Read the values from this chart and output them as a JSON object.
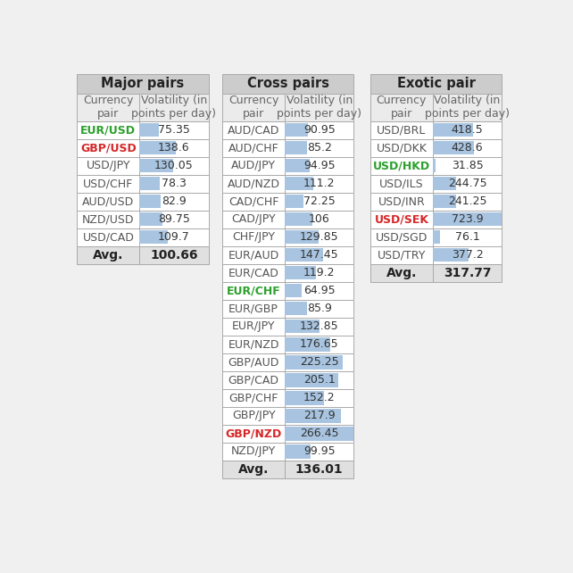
{
  "major_pairs": {
    "title": "Major pairs",
    "rows": [
      {
        "pair": "EUR/USD",
        "value": 75.35,
        "color": "#2ca02c"
      },
      {
        "pair": "GBP/USD",
        "value": 138.6,
        "color": "#d62728"
      },
      {
        "pair": "USD/JPY",
        "value": 130.05,
        "color": "#555555"
      },
      {
        "pair": "USD/CHF",
        "value": 78.3,
        "color": "#555555"
      },
      {
        "pair": "AUD/USD",
        "value": 82.9,
        "color": "#555555"
      },
      {
        "pair": "NZD/USD",
        "value": 89.75,
        "color": "#555555"
      },
      {
        "pair": "USD/CAD",
        "value": 109.7,
        "color": "#555555"
      }
    ],
    "avg": "100.66",
    "bar_max": 266.45
  },
  "cross_pairs": {
    "title": "Cross pairs",
    "rows": [
      {
        "pair": "AUD/CAD",
        "value": 90.95,
        "color": "#555555"
      },
      {
        "pair": "AUD/CHF",
        "value": 85.2,
        "color": "#555555"
      },
      {
        "pair": "AUD/JPY",
        "value": 94.95,
        "color": "#555555"
      },
      {
        "pair": "AUD/NZD",
        "value": 111.2,
        "color": "#555555"
      },
      {
        "pair": "CAD/CHF",
        "value": 72.25,
        "color": "#555555"
      },
      {
        "pair": "CAD/JPY",
        "value": 106,
        "color": "#555555"
      },
      {
        "pair": "CHF/JPY",
        "value": 129.85,
        "color": "#555555"
      },
      {
        "pair": "EUR/AUD",
        "value": 147.45,
        "color": "#555555"
      },
      {
        "pair": "EUR/CAD",
        "value": 119.2,
        "color": "#555555"
      },
      {
        "pair": "EUR/CHF",
        "value": 64.95,
        "color": "#2ca02c"
      },
      {
        "pair": "EUR/GBP",
        "value": 85.9,
        "color": "#555555"
      },
      {
        "pair": "EUR/JPY",
        "value": 132.85,
        "color": "#555555"
      },
      {
        "pair": "EUR/NZD",
        "value": 176.65,
        "color": "#555555"
      },
      {
        "pair": "GBP/AUD",
        "value": 225.25,
        "color": "#555555"
      },
      {
        "pair": "GBP/CAD",
        "value": 205.1,
        "color": "#555555"
      },
      {
        "pair": "GBP/CHF",
        "value": 152.2,
        "color": "#555555"
      },
      {
        "pair": "GBP/JPY",
        "value": 217.9,
        "color": "#555555"
      },
      {
        "pair": "GBP/NZD",
        "value": 266.45,
        "color": "#d62728"
      },
      {
        "pair": "NZD/JPY",
        "value": 99.95,
        "color": "#555555"
      }
    ],
    "avg": "136.01",
    "bar_max": 266.45
  },
  "exotic_pairs": {
    "title": "Exotic pair",
    "rows": [
      {
        "pair": "USD/BRL",
        "value": 418.5,
        "color": "#555555"
      },
      {
        "pair": "USD/DKK",
        "value": 428.6,
        "color": "#555555"
      },
      {
        "pair": "USD/HKD",
        "value": 31.85,
        "color": "#2ca02c"
      },
      {
        "pair": "USD/ILS",
        "value": 244.75,
        "color": "#555555"
      },
      {
        "pair": "USD/INR",
        "value": 241.25,
        "color": "#555555"
      },
      {
        "pair": "USD/SEK",
        "value": 723.9,
        "color": "#d62728"
      },
      {
        "pair": "USD/SGD",
        "value": 76.1,
        "color": "#555555"
      },
      {
        "pair": "USD/TRY",
        "value": 377.2,
        "color": "#555555"
      }
    ],
    "avg": "317.77",
    "bar_max": 723.9
  },
  "col1_header": "Currency\npair",
  "col2_header": "Volatility (in\npoints per day)",
  "bar_color": "#a8c4e0",
  "title_bg": "#cccccc",
  "col_header_bg": "#ebebeb",
  "row_bg": "#ffffff",
  "avg_bg": "#e0e0e0",
  "border_color": "#aaaaaa",
  "text_color_header": "#666666",
  "bg_color": "#f0f0f0",
  "title_fontsize": 10.5,
  "header_fontsize": 9,
  "data_fontsize": 9,
  "avg_fontsize": 10
}
